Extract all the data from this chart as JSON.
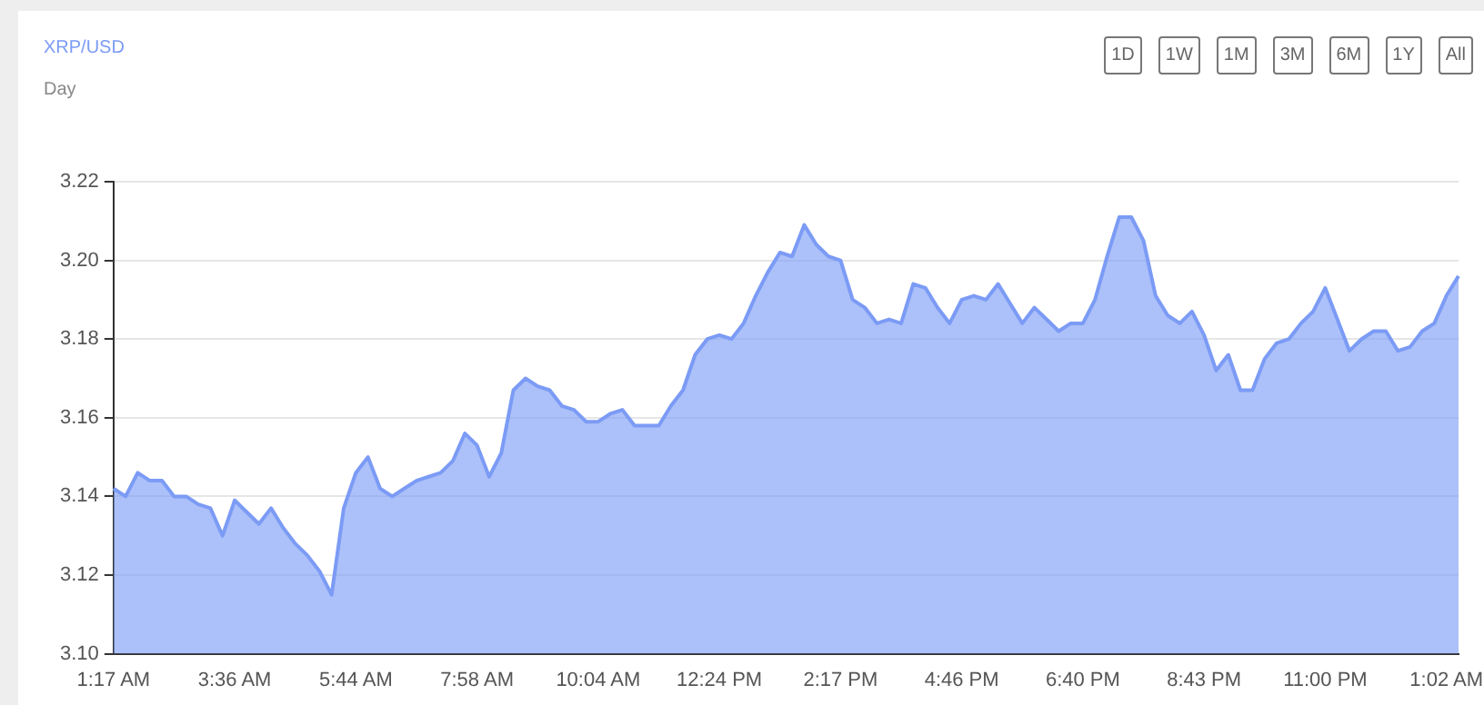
{
  "chart_data": {
    "type": "area",
    "title": "XRP/USD",
    "subtitle": "Day",
    "annotations": [
      "1D",
      "1W",
      "1M",
      "3M",
      "6M",
      "1Y",
      "All"
    ],
    "categories": [
      "1:17 AM",
      null,
      null,
      null,
      null,
      null,
      null,
      null,
      null,
      null,
      "3:36 AM",
      null,
      null,
      null,
      null,
      null,
      null,
      null,
      null,
      null,
      "5:44 AM",
      null,
      null,
      null,
      null,
      null,
      null,
      null,
      null,
      null,
      "7:58 AM",
      null,
      null,
      null,
      null,
      null,
      null,
      null,
      null,
      null,
      "10:04 AM",
      null,
      null,
      null,
      null,
      null,
      null,
      null,
      null,
      null,
      "12:24 PM",
      null,
      null,
      null,
      null,
      null,
      null,
      null,
      null,
      null,
      "2:17 PM",
      null,
      null,
      null,
      null,
      null,
      null,
      null,
      null,
      null,
      "4:46 PM",
      null,
      null,
      null,
      null,
      null,
      null,
      null,
      null,
      null,
      "6:40 PM",
      null,
      null,
      null,
      null,
      null,
      null,
      null,
      null,
      null,
      "8:43 PM",
      null,
      null,
      null,
      null,
      null,
      null,
      null,
      null,
      null,
      "11:00 PM",
      null,
      null,
      null,
      null,
      null,
      null,
      null,
      null,
      null,
      "1:02 AM",
      null
    ],
    "series": [
      {
        "color": "#7b9bf5",
        "values": [
          3.142,
          3.14,
          3.146,
          3.144,
          3.144,
          3.14,
          3.14,
          3.138,
          3.137,
          3.13,
          3.139,
          3.136,
          3.133,
          3.137,
          3.132,
          3.128,
          3.125,
          3.121,
          3.115,
          3.137,
          3.146,
          3.15,
          3.142,
          3.14,
          3.142,
          3.144,
          3.145,
          3.146,
          3.149,
          3.156,
          3.153,
          3.145,
          3.151,
          3.167,
          3.17,
          3.168,
          3.167,
          3.163,
          3.162,
          3.159,
          3.159,
          3.161,
          3.162,
          3.158,
          3.158,
          3.158,
          3.163,
          3.167,
          3.176,
          3.18,
          3.181,
          3.18,
          3.184,
          3.191,
          3.197,
          3.202,
          3.201,
          3.209,
          3.204,
          3.201,
          3.2,
          3.19,
          3.188,
          3.184,
          3.185,
          3.184,
          3.194,
          3.193,
          3.188,
          3.184,
          3.19,
          3.191,
          3.19,
          3.194,
          3.189,
          3.184,
          3.188,
          3.185,
          3.182,
          3.184,
          3.184,
          3.19,
          3.201,
          3.211,
          3.211,
          3.205,
          3.191,
          3.186,
          3.184,
          3.187,
          3.181,
          3.172,
          3.176,
          3.167,
          3.167,
          3.175,
          3.179,
          3.18,
          3.184,
          3.187,
          3.193,
          3.185,
          3.177,
          3.18,
          3.182,
          3.182,
          3.177,
          3.178,
          3.182,
          3.184,
          3.191,
          3.196
        ]
      }
    ],
    "ylim": [
      3.1,
      3.22
    ],
    "yticks": [
      {
        "value": 3.1,
        "label": "3.10"
      },
      3.12,
      3.14,
      3.16,
      3.18,
      {
        "value": 3.2,
        "label": "3.20"
      },
      3.22
    ],
    "grid": "y"
  }
}
